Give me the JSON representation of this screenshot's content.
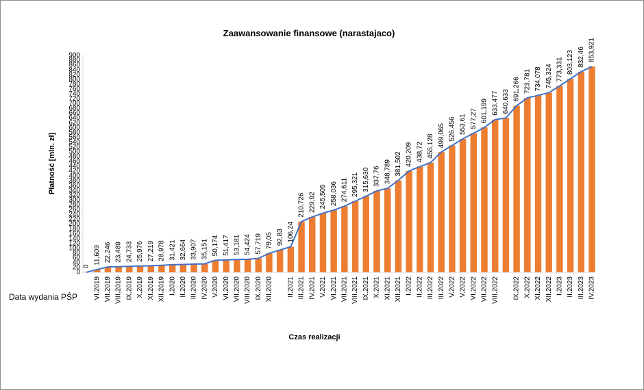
{
  "chart_data": {
    "type": "bar",
    "title": "Zaawansowanie finansowe (narastajaco)",
    "y_label": "Płatność [mln. zł]",
    "x_label": "Czas realizacji",
    "annotation": "Data wydania PŚP",
    "categories": [
      null,
      "VI.2019",
      "VII.2019",
      "VIII.2019",
      "IX.2019",
      "X.2019",
      "XI.2019",
      "XII.2019",
      "I.2020",
      "II.2020",
      "III.2020",
      "IV.2020",
      "V.2020",
      "VI.2020",
      "VII.2020",
      "VIII.2020",
      "IX.2020",
      "XII.2020",
      null,
      "II.2021",
      "III.2021",
      "IV.2021",
      "V.2021",
      "VI.2021",
      "VII.2021",
      "VIII.2021",
      "IX.2021",
      "X.2021",
      "XI.2021",
      "XII.2021",
      "I.2022",
      "II.2022",
      "III.2022",
      "III.2022",
      "V.2022",
      "V.2022",
      "VI.2022",
      "VII.2022",
      "VIII.2022",
      null,
      "IX.2022",
      "X.2022",
      "XI.2022",
      "XII.2022",
      "I.2023",
      "II.2023",
      "III.2023",
      "IV.2023"
    ],
    "values": [
      0,
      11.609,
      22.246,
      23.489,
      24.733,
      25.976,
      27.219,
      28.978,
      31.421,
      32.664,
      33.907,
      35.151,
      50.174,
      51.417,
      53.181,
      54.424,
      57.719,
      79.05,
      92.83,
      106.24,
      210.726,
      229.92,
      245.505,
      258.036,
      274.611,
      295.321,
      315.63,
      337.76,
      348.789,
      381.502,
      420.209,
      438.72,
      455.128,
      499.065,
      526.456,
      553.61,
      577.27,
      601.199,
      633.477,
      640.633,
      691.266,
      723.781,
      734.078,
      745.324,
      773.331,
      803.123,
      832.46,
      853.921
    ],
    "value_labels": [
      "0",
      "11,609",
      "22,246",
      "23,489",
      "24,733",
      "25,976",
      "27,219",
      "28,978",
      "31,421",
      "32,664",
      "33,907",
      "35,151",
      "50,174",
      "51,417",
      "53,181",
      "54,424",
      "57,719",
      "79,05",
      "92,83",
      "106,24",
      "210,726",
      "229,92",
      "245,505",
      "258,036",
      "274,611",
      "295,321",
      "315,630",
      "337,76",
      "348,789",
      "381,502",
      "420,209",
      "438,72",
      "455,128",
      "499,065",
      "526,456",
      "553,61",
      "577,27",
      "601,199",
      "633,477",
      "640,633",
      "691,266",
      "723,781",
      "734,078",
      "745,324",
      "773,331",
      "803,123",
      "832,46",
      "853,921"
    ],
    "color": "#ed7d31",
    "line_color": "#4472c4",
    "ylim": [
      0,
      900
    ],
    "yticks": [
      0,
      20,
      40,
      60,
      80,
      100,
      120,
      140,
      160,
      180,
      200,
      220,
      240,
      260,
      280,
      300,
      320,
      340,
      360,
      380,
      400,
      420,
      440,
      460,
      480,
      500,
      520,
      540,
      560,
      580,
      600,
      620,
      640,
      660,
      680,
      700,
      720,
      740,
      760,
      780,
      800,
      820,
      840,
      860,
      880,
      900
    ],
    "grid": false
  }
}
